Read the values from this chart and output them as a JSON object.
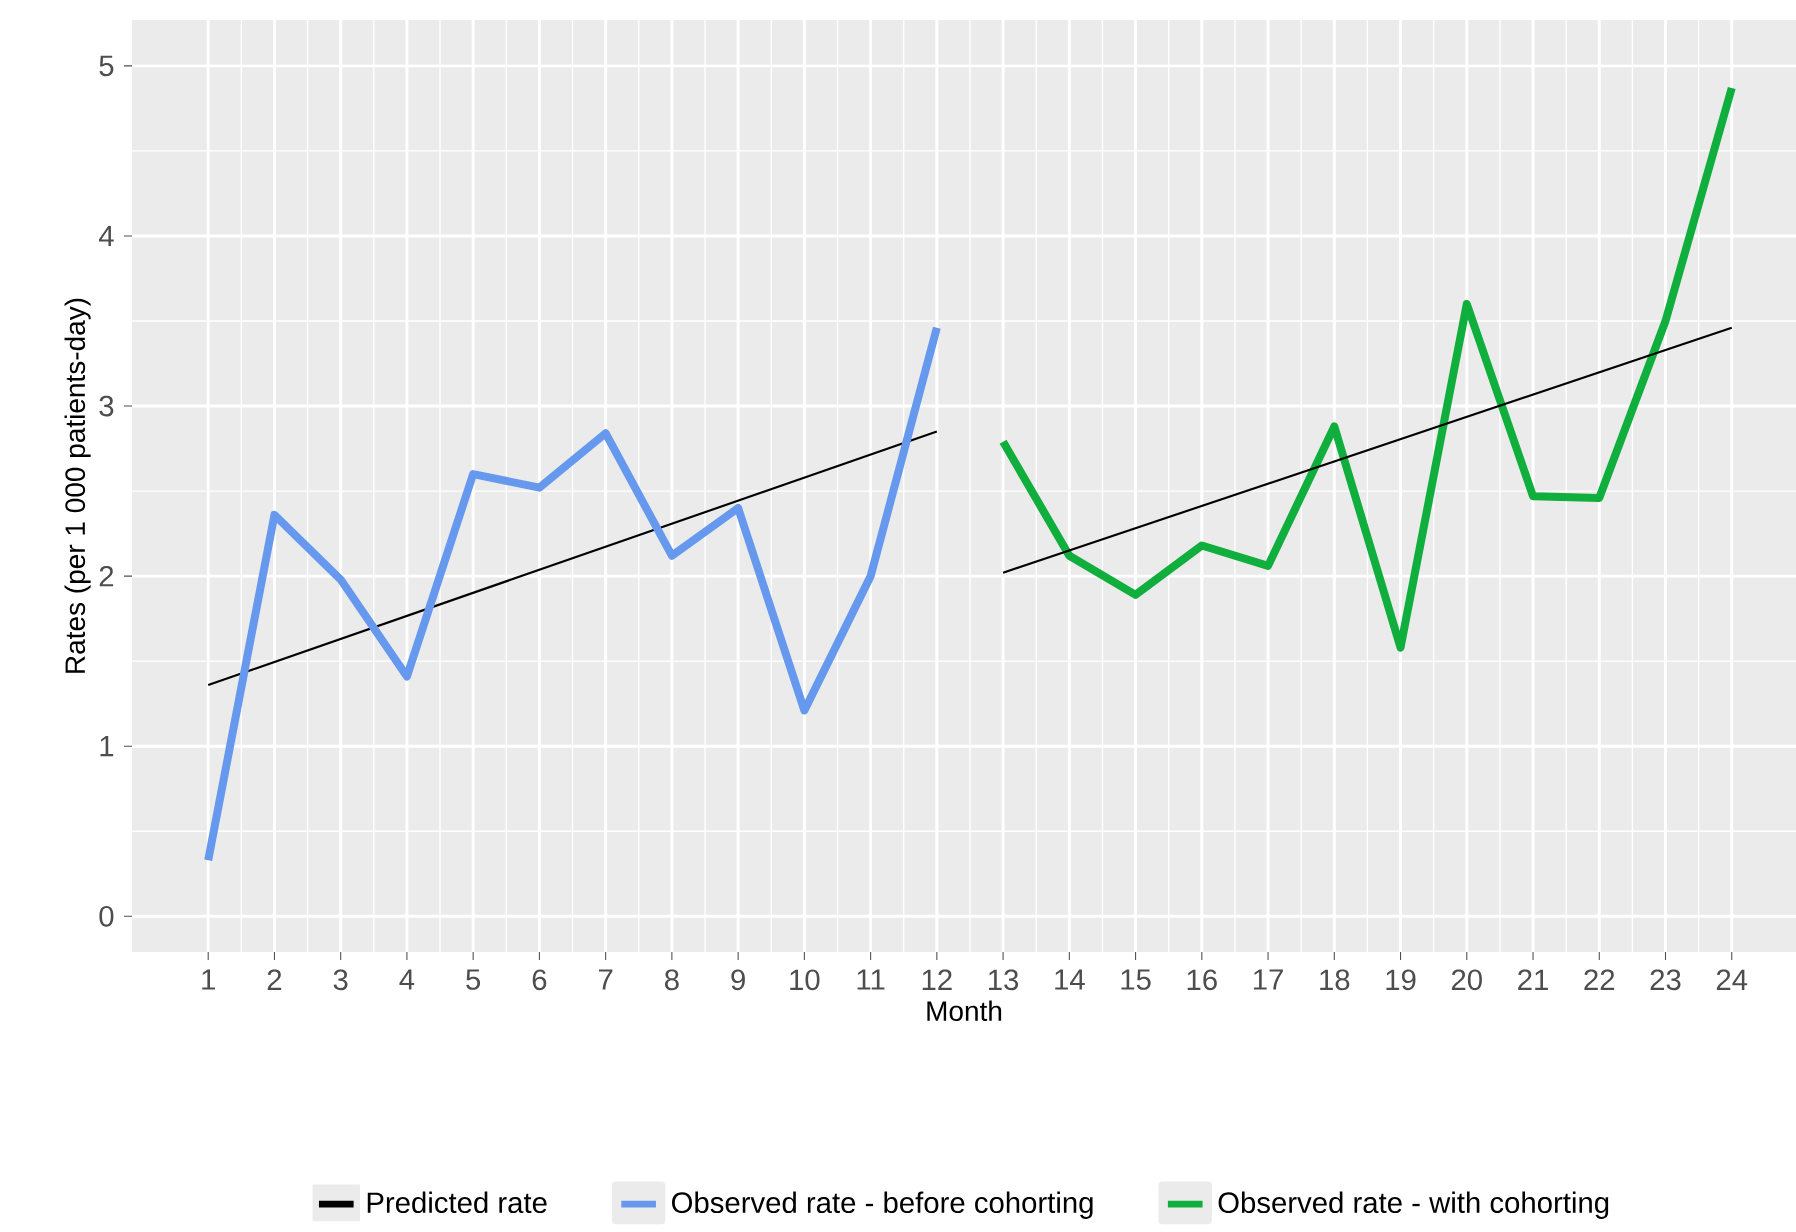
{
  "chart_data": {
    "type": "line",
    "xlabel": "Month",
    "ylabel": "Rates (per 1 000 patients-day)",
    "xlim": [
      -0.15,
      24.97
    ],
    "ylim": [
      -0.21,
      5.27
    ],
    "xticks": [
      1,
      2,
      3,
      4,
      5,
      6,
      7,
      8,
      9,
      10,
      11,
      12,
      13,
      14,
      15,
      16,
      17,
      18,
      19,
      20,
      21,
      22,
      23,
      24
    ],
    "yticks": [
      0,
      1,
      2,
      3,
      4,
      5
    ],
    "grid": true,
    "legend": "bottom",
    "series": [
      {
        "name": "Predicted rate",
        "color": "#000000",
        "x": [
          1,
          12
        ],
        "values": [
          1.36,
          2.85
        ]
      },
      {
        "name": "Observed rate - before cohorting",
        "color": "#6699ee",
        "x": [
          1,
          2,
          3,
          4,
          5,
          6,
          7,
          8,
          9,
          10,
          11,
          12
        ],
        "values": [
          0.33,
          2.36,
          1.98,
          1.41,
          2.6,
          2.52,
          2.84,
          2.12,
          2.4,
          1.21,
          2.0,
          3.46
        ]
      },
      {
        "name": "Observed rate - with cohorting",
        "color": "#10ae3c",
        "x": [
          13,
          14,
          15,
          16,
          17,
          18,
          19,
          20,
          21,
          22,
          23,
          24
        ],
        "values": [
          2.79,
          2.12,
          1.89,
          2.18,
          2.06,
          2.88,
          1.58,
          3.6,
          2.47,
          2.46,
          3.5,
          4.87
        ]
      },
      {
        "color": "#000000",
        "x": [
          13,
          24
        ],
        "values": [
          2.02,
          3.46
        ]
      }
    ]
  }
}
